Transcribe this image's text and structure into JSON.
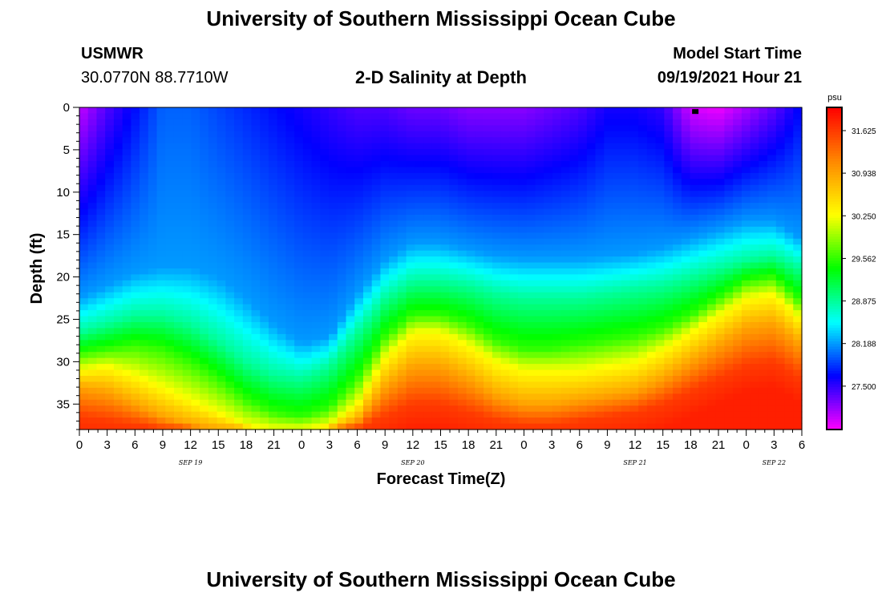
{
  "header": {
    "title_top": "University of Southern Mississippi Ocean Cube",
    "title_bottom": "University of Southern Mississippi Ocean Cube",
    "station_id": "USMWR",
    "coords": "30.0770N  88.7710W",
    "subtitle": "2-D Salinity at Depth",
    "start_label": "Model Start Time",
    "start_value": "09/19/2021 Hour 21"
  },
  "chart_data": {
    "type": "heatmap",
    "title": "2-D Salinity at Depth",
    "xlabel": "Forecast Time(Z)",
    "ylabel": "Depth (ft)",
    "units": "psu",
    "x_ticks": [
      "0",
      "3",
      "6",
      "9",
      "12",
      "15",
      "18",
      "21",
      "0",
      "3",
      "6",
      "9",
      "12",
      "15",
      "18",
      "21",
      "0",
      "3",
      "6",
      "9",
      "12",
      "15",
      "18",
      "21",
      "0",
      "3",
      "6"
    ],
    "x_hours": [
      0,
      3,
      6,
      9,
      12,
      15,
      18,
      21,
      24,
      27,
      30,
      33,
      36,
      39,
      42,
      45,
      48,
      51,
      54,
      57,
      60,
      63,
      66,
      69,
      72,
      75,
      78
    ],
    "day_labels": [
      {
        "label": "SEP 19",
        "hour": 12
      },
      {
        "label": "SEP 20",
        "hour": 36
      },
      {
        "label": "SEP 21",
        "hour": 60
      },
      {
        "label": "SEP 22",
        "hour": 75
      }
    ],
    "y_ticks": [
      0,
      5,
      10,
      15,
      20,
      25,
      30,
      35
    ],
    "xlim": [
      0,
      78
    ],
    "ylim": [
      0,
      38
    ],
    "y_inverted": true,
    "colorbar": {
      "min": 26.8,
      "max": 32.0,
      "tick_values": [
        31.625,
        30.938,
        30.25,
        29.562,
        28.875,
        28.188,
        27.5
      ],
      "tick_labels": [
        "31.625",
        "30.938",
        "30.250",
        "29.562",
        "28.875",
        "28.188",
        "27.500"
      ],
      "colors": [
        "#ff00ff",
        "#0000ff",
        "#00ffff",
        "#00ff00",
        "#ffff00",
        "#ff8800",
        "#ff0000"
      ]
    },
    "marker": {
      "hour": 66.5,
      "depth": 0.3
    },
    "bottom_salinity_psu": 31.8,
    "surface_salinity_psu": [
      27.0,
      27.4,
      27.7,
      28.0,
      28.0,
      27.9,
      27.8,
      27.7,
      27.6,
      27.5,
      27.4,
      27.4,
      27.3,
      27.3,
      27.2,
      27.2,
      27.2,
      27.3,
      27.4,
      27.6,
      27.6,
      27.5,
      26.95,
      26.85,
      27.1,
      27.35,
      27.7
    ],
    "isohaline_depth_ft": {
      "28.188": [
        22.5,
        21.0,
        19.5,
        18.8,
        18.8,
        20.0,
        22.5,
        25.5,
        27.8,
        27.0,
        22.0,
        18.0,
        16.0,
        16.0,
        16.8,
        17.5,
        17.8,
        17.8,
        17.8,
        17.5,
        17.2,
        16.5,
        15.5,
        14.5,
        13.5,
        13.5,
        15.5
      ],
      "28.875": [
        26.5,
        25.5,
        24.5,
        24.5,
        25.5,
        27.5,
        30.0,
        31.5,
        32.0,
        30.5,
        26.5,
        22.5,
        20.5,
        20.5,
        21.0,
        22.0,
        22.5,
        22.5,
        22.5,
        22.0,
        21.5,
        21.0,
        20.0,
        19.0,
        18.0,
        17.5,
        19.0
      ],
      "29.562": [
        29.0,
        28.5,
        28.0,
        28.5,
        30.0,
        32.0,
        34.5,
        36.0,
        36.5,
        35.5,
        32.0,
        27.0,
        24.5,
        24.5,
        25.5,
        27.5,
        28.5,
        28.5,
        28.0,
        27.5,
        27.0,
        26.0,
        24.5,
        22.5,
        20.5,
        20.0,
        23.0
      ],
      "30.250": [
        31.0,
        30.5,
        31.5,
        33.0,
        34.5,
        36.0,
        37.5,
        38.0,
        38.0,
        37.5,
        35.0,
        29.5,
        26.5,
        26.5,
        28.0,
        30.0,
        31.0,
        31.0,
        31.0,
        30.5,
        30.0,
        28.5,
        26.5,
        24.5,
        22.5,
        22.0,
        25.0
      ],
      "30.938": [
        33.0,
        33.5,
        35.0,
        36.5,
        37.5,
        38.0,
        38.0,
        38.0,
        38.0,
        38.0,
        37.0,
        33.0,
        30.5,
        30.5,
        32.0,
        34.0,
        35.0,
        35.0,
        34.5,
        34.0,
        33.5,
        32.0,
        30.0,
        28.0,
        26.0,
        25.5,
        28.0
      ],
      "31.625": [
        36.5,
        37.0,
        37.5,
        38.0,
        38.0,
        38.0,
        38.0,
        38.0,
        38.0,
        38.0,
        38.0,
        36.5,
        35.0,
        35.0,
        36.0,
        37.0,
        37.5,
        37.5,
        37.0,
        36.5,
        36.0,
        35.0,
        33.5,
        32.0,
        30.5,
        30.0,
        32.0
      ]
    }
  }
}
